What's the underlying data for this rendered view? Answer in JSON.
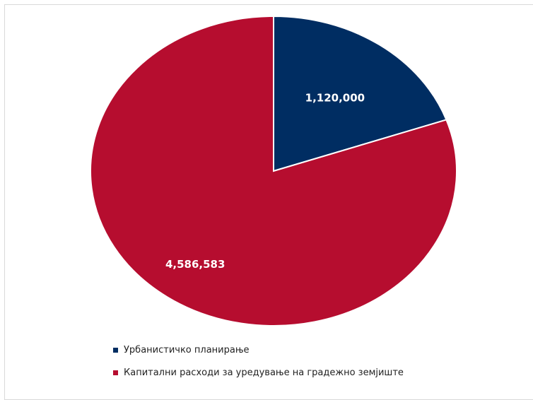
{
  "chart_data": {
    "type": "pie",
    "title": "",
    "categories": [
      "Урбанистичко планирање",
      "Капитални расходи за уредување на градежно земјиште"
    ],
    "values": [
      1120000,
      4586583
    ],
    "value_labels": [
      "1,120,000",
      "4,586,583"
    ],
    "colors": [
      "#002d62",
      "#b60d2f"
    ],
    "legend_position": "bottom",
    "start_angle_deg": 0,
    "direction": "clockwise"
  }
}
